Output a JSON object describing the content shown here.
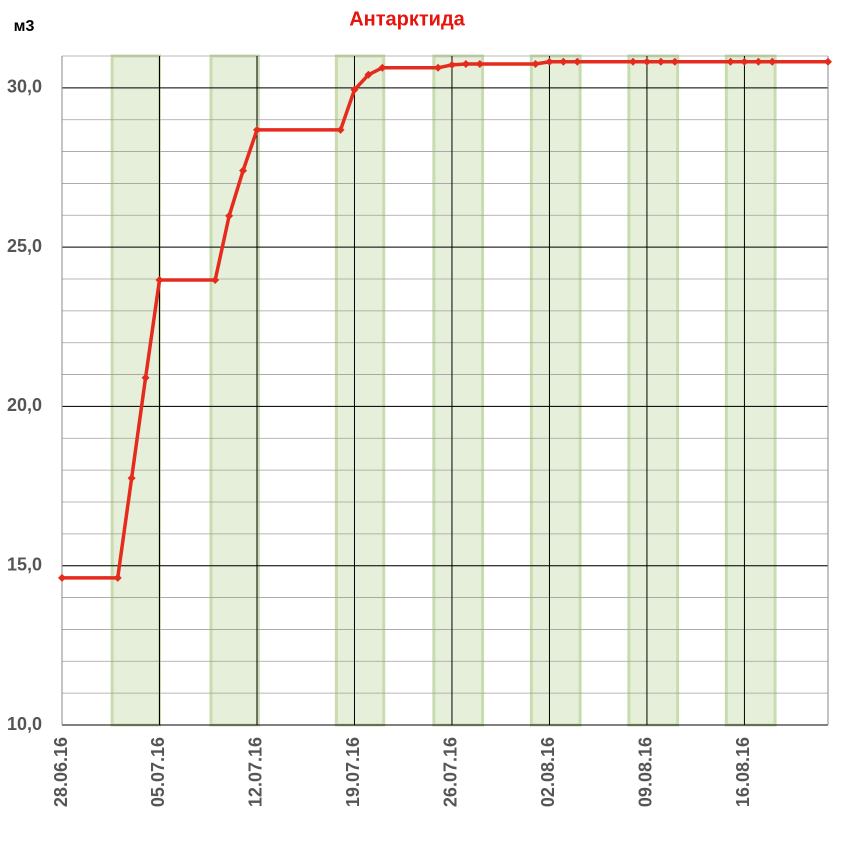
{
  "chart_data": {
    "type": "line",
    "title": "Антарктида",
    "y_label": "м3",
    "x": [
      0,
      4,
      5,
      6,
      7,
      11,
      12,
      13,
      14,
      20,
      21,
      22,
      23,
      27,
      28,
      29,
      30,
      34,
      35,
      36,
      37,
      41,
      42,
      43,
      44,
      48,
      49,
      50,
      51,
      55
    ],
    "series": [
      {
        "name": "Антарктида",
        "color": "#e52b1e",
        "values": [
          14.62,
          14.62,
          17.75,
          20.9,
          23.97,
          23.97,
          25.98,
          27.4,
          28.68,
          28.68,
          29.94,
          30.41,
          30.63,
          30.63,
          30.72,
          30.75,
          30.75,
          30.75,
          30.82,
          30.82,
          30.82,
          30.82,
          30.82,
          30.82,
          30.82,
          30.82,
          30.82,
          30.82,
          30.82,
          30.82
        ]
      }
    ],
    "xlim": [
      0,
      55
    ],
    "xticks": [
      {
        "value": 0,
        "label": "28.06.16"
      },
      {
        "value": 7,
        "label": "05.07.16"
      },
      {
        "value": 14,
        "label": "12.07.16"
      },
      {
        "value": 21,
        "label": "19.07.16"
      },
      {
        "value": 28,
        "label": "26.07.16"
      },
      {
        "value": 35,
        "label": "02.08.16"
      },
      {
        "value": 42,
        "label": "09.08.16"
      },
      {
        "value": 49,
        "label": "16.08.16"
      }
    ],
    "ylim": [
      10,
      31
    ],
    "yticks": [
      {
        "value": 10,
        "label": "10,0"
      },
      {
        "value": 15,
        "label": "15,0"
      },
      {
        "value": 20,
        "label": "20,0"
      },
      {
        "value": 25,
        "label": "25,0"
      },
      {
        "value": 30,
        "label": "30,0"
      }
    ],
    "y_minor_step": 1,
    "grid": true,
    "shaded_ranges": [
      [
        3.6,
        7.0
      ],
      [
        10.7,
        14.1
      ],
      [
        19.7,
        23.1
      ],
      [
        26.7,
        30.2
      ],
      [
        33.7,
        37.2
      ],
      [
        40.7,
        44.2
      ],
      [
        47.7,
        51.2
      ]
    ],
    "shade_color": "#e6efd9"
  }
}
